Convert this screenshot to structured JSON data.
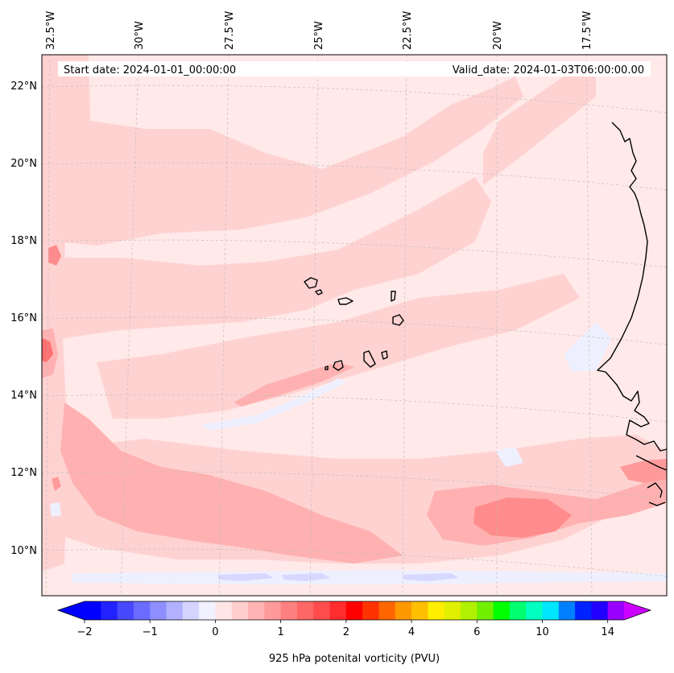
{
  "header": {
    "start_date": "Start date: 2024-01-01_00:00:00",
    "valid_date": "Valid_date: 2024-01-03T06:00:00.00"
  },
  "map": {
    "longitude_labels": [
      "32.5°W",
      "30°W",
      "27.5°W",
      "25°W",
      "22.5°W",
      "20°W",
      "17.5°W"
    ],
    "latitude_labels": [
      "22°N",
      "20°N",
      "18°N",
      "16°N",
      "14°N",
      "12°N",
      "10°N"
    ],
    "background_color": "#ffe9e9"
  },
  "colorbar": {
    "title": "925 hPa potenital vorticity (PVU)",
    "tick_labels": [
      "−2",
      "−1",
      "0",
      "1",
      "2",
      "4",
      "6",
      "10",
      "14"
    ],
    "colors": [
      "#0000ff",
      "#2222ff",
      "#4848ff",
      "#6b6bff",
      "#8e8eff",
      "#b1b1ff",
      "#d4d4ff",
      "#f1f1ff",
      "#ffe6e6",
      "#ffcfcf",
      "#ffb3b3",
      "#ff9a9a",
      "#ff8080",
      "#ff6666",
      "#ff4d4d",
      "#ff2d2d",
      "#ff0000",
      "#ff3300",
      "#ff6600",
      "#ff9900",
      "#ffbf00",
      "#ffee00",
      "#e0f000",
      "#b0f000",
      "#70f000",
      "#00ff00",
      "#00ff70",
      "#00ffc0",
      "#00e6ff",
      "#0080ff",
      "#0022ff",
      "#2200ff",
      "#9900ff"
    ],
    "extend_low_color": "#0000ff",
    "extend_high_color": "#cc00ff"
  }
}
